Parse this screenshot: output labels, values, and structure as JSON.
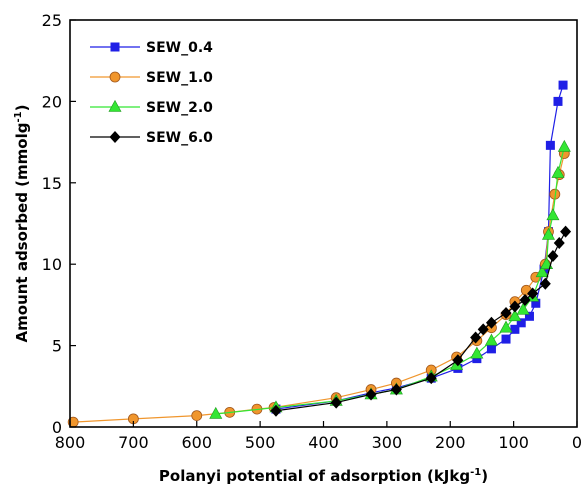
{
  "chart_data": {
    "type": "line",
    "xlabel": "Polanyi potential of adsorption (kJkg",
    "xlabel_sup": "-1",
    "xlabel_end": ")",
    "ylabel": "Amount adsorbed (mmolg",
    "ylabel_sup": "-1",
    "ylabel_end": ")",
    "xlim": [
      800,
      0
    ],
    "ylim": [
      0,
      25
    ],
    "x_reversed": true,
    "x_ticks": [
      800,
      700,
      600,
      500,
      400,
      300,
      200,
      100,
      0
    ],
    "y_ticks": [
      0,
      5,
      10,
      15,
      20,
      25
    ],
    "grid": false,
    "legend_position": "top-left",
    "series": [
      {
        "name": "SEW_0.4",
        "color": "#1f1fe6",
        "marker": "square",
        "points": [
          [
            475,
            1.1
          ],
          [
            380,
            1.6
          ],
          [
            325,
            2.1
          ],
          [
            285,
            2.4
          ],
          [
            230,
            3.0
          ],
          [
            188,
            3.6
          ],
          [
            158,
            4.2
          ],
          [
            135,
            4.8
          ],
          [
            112,
            5.4
          ],
          [
            98,
            6.0
          ],
          [
            88,
            6.4
          ],
          [
            75,
            6.8
          ],
          [
            65,
            7.6
          ],
          [
            52,
            9.7
          ],
          [
            45,
            12.0
          ],
          [
            42,
            17.3
          ],
          [
            30,
            20.0
          ],
          [
            22,
            21.0
          ]
        ]
      },
      {
        "name": "SEW_1.0",
        "color": "#f0962d",
        "marker": "circle",
        "points": [
          [
            795,
            0.3
          ],
          [
            700,
            0.5
          ],
          [
            600,
            0.7
          ],
          [
            548,
            0.9
          ],
          [
            505,
            1.1
          ],
          [
            478,
            1.2
          ],
          [
            380,
            1.8
          ],
          [
            325,
            2.3
          ],
          [
            285,
            2.7
          ],
          [
            230,
            3.5
          ],
          [
            190,
            4.3
          ],
          [
            158,
            5.3
          ],
          [
            135,
            6.1
          ],
          [
            112,
            6.9
          ],
          [
            98,
            7.7
          ],
          [
            80,
            8.4
          ],
          [
            65,
            9.2
          ],
          [
            50,
            10.0
          ],
          [
            45,
            12.0
          ],
          [
            35,
            14.3
          ],
          [
            28,
            15.5
          ],
          [
            20,
            16.8
          ]
        ]
      },
      {
        "name": "SEW_2.0",
        "color": "#33e633",
        "marker": "triangle",
        "points": [
          [
            570,
            0.8
          ],
          [
            475,
            1.2
          ],
          [
            380,
            1.6
          ],
          [
            325,
            2.0
          ],
          [
            285,
            2.3
          ],
          [
            230,
            3.1
          ],
          [
            190,
            3.8
          ],
          [
            158,
            4.5
          ],
          [
            135,
            5.3
          ],
          [
            112,
            6.1
          ],
          [
            98,
            6.8
          ],
          [
            85,
            7.2
          ],
          [
            70,
            8.0
          ],
          [
            55,
            9.5
          ],
          [
            48,
            10.0
          ],
          [
            45,
            11.8
          ],
          [
            38,
            13.0
          ],
          [
            30,
            15.6
          ],
          [
            20,
            17.2
          ]
        ]
      },
      {
        "name": "SEW_6.0",
        "color": "#000000",
        "marker": "diamond",
        "points": [
          [
            475,
            1.0
          ],
          [
            380,
            1.5
          ],
          [
            325,
            2.0
          ],
          [
            285,
            2.3
          ],
          [
            230,
            3.0
          ],
          [
            188,
            4.1
          ],
          [
            160,
            5.5
          ],
          [
            148,
            6.0
          ],
          [
            135,
            6.4
          ],
          [
            112,
            7.0
          ],
          [
            98,
            7.4
          ],
          [
            82,
            7.8
          ],
          [
            70,
            8.2
          ],
          [
            50,
            8.8
          ],
          [
            38,
            10.5
          ],
          [
            28,
            11.3
          ],
          [
            18,
            12.0
          ]
        ]
      }
    ]
  }
}
